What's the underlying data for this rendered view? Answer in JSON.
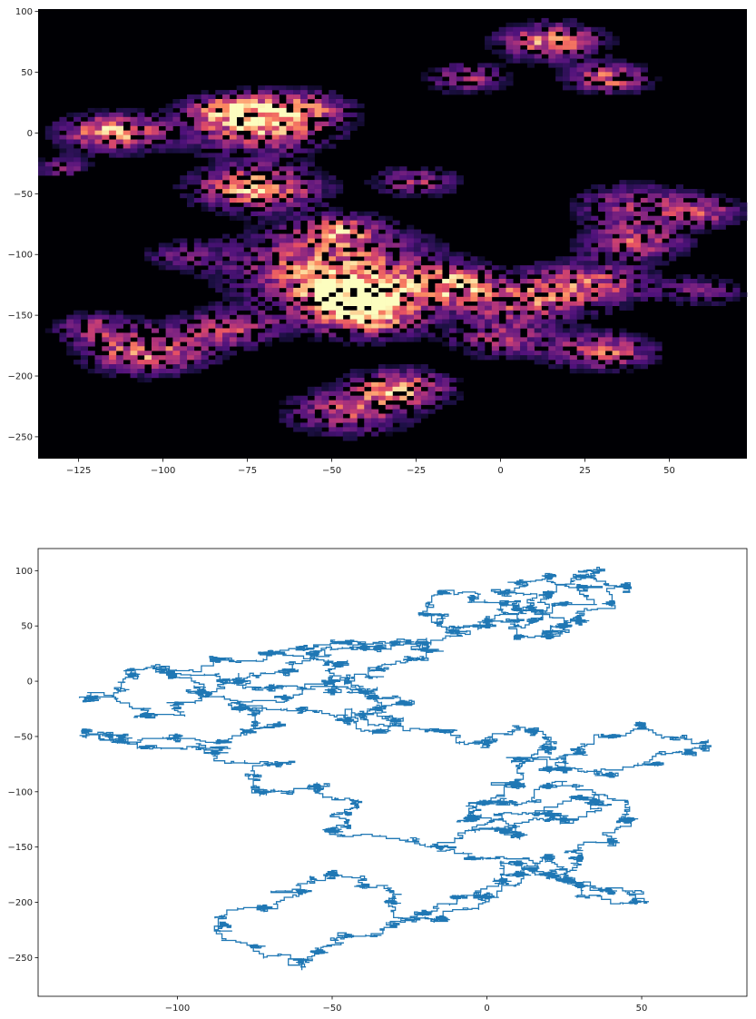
{
  "chart_data": [
    {
      "type": "heatmap",
      "title": "",
      "xlabel": "",
      "ylabel": "",
      "xlim": [
        -137,
        73
      ],
      "ylim": [
        -268,
        102
      ],
      "xticks": [
        -125,
        -100,
        -75,
        -50,
        -25,
        0,
        25,
        50
      ],
      "yticks": [
        100,
        50,
        0,
        -50,
        -100,
        -150,
        -200,
        -250
      ],
      "xtick_labels": [
        "−125",
        "−100",
        "−75",
        "−50",
        "−25",
        "0",
        "25",
        "50"
      ],
      "ytick_labels": [
        "100",
        "50",
        "0",
        "−50",
        "−100",
        "−150",
        "−200",
        "−250"
      ],
      "colormap": "magma",
      "background_color": "#000004",
      "grid": false,
      "density_regions": [
        {
          "x": -50,
          "y": -110,
          "spread": 20,
          "intensity": 0.8
        },
        {
          "x": -44,
          "y": -133,
          "spread": 10,
          "intensity": 1.0
        },
        {
          "x": -40,
          "y": -150,
          "spread": 12,
          "intensity": 0.9
        },
        {
          "x": -72,
          "y": -45,
          "spread": 12,
          "intensity": 0.9
        },
        {
          "x": -72,
          "y": 5,
          "spread": 14,
          "intensity": 0.8
        },
        {
          "x": -80,
          "y": 20,
          "spread": 8,
          "intensity": 0.6
        },
        {
          "x": -115,
          "y": 0,
          "spread": 10,
          "intensity": 0.9
        },
        {
          "x": -130,
          "y": -28,
          "spread": 5,
          "intensity": 0.5
        },
        {
          "x": -105,
          "y": -180,
          "spread": 12,
          "intensity": 0.8
        },
        {
          "x": -120,
          "y": -160,
          "spread": 8,
          "intensity": 0.5
        },
        {
          "x": -80,
          "y": -160,
          "spread": 10,
          "intensity": 0.6
        },
        {
          "x": -30,
          "y": -210,
          "spread": 10,
          "intensity": 0.8
        },
        {
          "x": -45,
          "y": -230,
          "spread": 12,
          "intensity": 0.6
        },
        {
          "x": -15,
          "y": -125,
          "spread": 10,
          "intensity": 0.8
        },
        {
          "x": 5,
          "y": -140,
          "spread": 12,
          "intensity": 0.6
        },
        {
          "x": 25,
          "y": -125,
          "spread": 12,
          "intensity": 0.7
        },
        {
          "x": 30,
          "y": -180,
          "spread": 10,
          "intensity": 0.7
        },
        {
          "x": 40,
          "y": -90,
          "spread": 10,
          "intensity": 0.6
        },
        {
          "x": 40,
          "y": -60,
          "spread": 12,
          "intensity": 0.5
        },
        {
          "x": 60,
          "y": -65,
          "spread": 8,
          "intensity": 0.5
        },
        {
          "x": 15,
          "y": 75,
          "spread": 10,
          "intensity": 0.8
        },
        {
          "x": 32,
          "y": 45,
          "spread": 8,
          "intensity": 0.7
        },
        {
          "x": -10,
          "y": 45,
          "spread": 8,
          "intensity": 0.5
        },
        {
          "x": -25,
          "y": -40,
          "spread": 8,
          "intensity": 0.5
        },
        {
          "x": -60,
          "y": 20,
          "spread": 10,
          "intensity": 0.6
        },
        {
          "x": -48,
          "y": -80,
          "spread": 8,
          "intensity": 0.6
        },
        {
          "x": 60,
          "y": -130,
          "spread": 8,
          "intensity": 0.4
        },
        {
          "x": -95,
          "y": -100,
          "spread": 8,
          "intensity": 0.3
        },
        {
          "x": 0,
          "y": -170,
          "spread": 10,
          "intensity": 0.5
        }
      ]
    },
    {
      "type": "line",
      "title": "",
      "xlabel": "",
      "ylabel": "",
      "xlim": [
        -145,
        84
      ],
      "ylim": [
        -285,
        120
      ],
      "xticks": [
        -100,
        -50,
        0,
        50
      ],
      "yticks": [
        100,
        50,
        0,
        -50,
        -100,
        -150,
        -200,
        -250
      ],
      "xtick_labels": [
        "−100",
        "−50",
        "0",
        "50"
      ],
      "ytick_labels": [
        "100",
        "50",
        "0",
        "−50",
        "−100",
        "−150",
        "−200",
        "−250"
      ],
      "line_color": "#1f77b4",
      "grid": false,
      "series": [
        {
          "x": [
            -20,
            -50,
            -45,
            -42,
            -55,
            -72,
            -75,
            -68,
            -88,
            -110,
            -122,
            -130,
            -118,
            -100,
            -85,
            -78,
            -68,
            -75,
            -60,
            -45,
            -35,
            -30,
            -40,
            -25,
            -38,
            -50,
            -70,
            -85,
            -102,
            -92,
            -80,
            -65,
            -50,
            -48,
            -70,
            -88,
            -105,
            -115,
            -128,
            -110,
            -100,
            -90,
            -80,
            -65,
            -55,
            -40,
            -30,
            -20,
            -25,
            -35,
            -45,
            -40,
            -35,
            -30,
            -15,
            0,
            15,
            20,
            10,
            25,
            40,
            55,
            65,
            70,
            50,
            40,
            30,
            20,
            10,
            0,
            -5,
            10,
            25,
            35,
            45,
            40,
            30,
            20,
            10,
            5,
            -10,
            -20,
            -30,
            -45,
            -55,
            -60,
            -75,
            -85,
            -72,
            -60,
            -50,
            -40,
            -30,
            -15,
            0,
            10,
            20,
            25,
            40,
            48,
            30,
            15,
            -5,
            -15,
            5,
            20,
            30,
            20,
            5,
            -5
          ],
          "y": [
            -150,
            -135,
            -120,
            -110,
            -95,
            -100,
            -85,
            -75,
            -65,
            -60,
            -50,
            -45,
            -55,
            -50,
            -55,
            -45,
            -40,
            -30,
            -25,
            -35,
            -45,
            -40,
            -30,
            -20,
            -15,
            -10,
            -5,
            0,
            5,
            -10,
            -25,
            -15,
            0,
            15,
            25,
            20,
            10,
            5,
            -15,
            -30,
            -20,
            -10,
            0,
            10,
            25,
            30,
            35,
            28,
            20,
            10,
            0,
            -10,
            -25,
            -35,
            -45,
            -55,
            -45,
            -60,
            -70,
            -80,
            -85,
            -75,
            -65,
            -55,
            -40,
            -50,
            -65,
            -80,
            -95,
            -110,
            -125,
            -140,
            -125,
            -110,
            -125,
            -145,
            -160,
            -175,
            -165,
            -180,
            -195,
            -210,
            -220,
            -230,
            -245,
            -255,
            -240,
            -220,
            -205,
            -190,
            -175,
            -185,
            -200,
            -215,
            -195,
            -175,
            -160,
            -180,
            -190,
            -200,
            -185,
            -170,
            -160,
            -150,
            -135,
            -120,
            -105,
            -95,
            -110,
            -125
          ]
        },
        {
          "x": [
            -72,
            -60,
            -45,
            -35,
            -20,
            -10,
            0,
            10,
            5,
            -5,
            -15,
            -20,
            -15,
            0,
            10,
            20,
            30,
            35,
            45,
            40,
            30,
            20,
            10,
            15,
            25,
            30,
            20,
            10,
            5,
            15,
            25,
            20
          ],
          "y": [
            25,
            30,
            35,
            30,
            35,
            45,
            50,
            55,
            70,
            75,
            80,
            60,
            50,
            55,
            65,
            80,
            95,
            100,
            85,
            70,
            55,
            45,
            40,
            55,
            70,
            85,
            95,
            90,
            80,
            65,
            50,
            40
          ]
        }
      ]
    }
  ]
}
